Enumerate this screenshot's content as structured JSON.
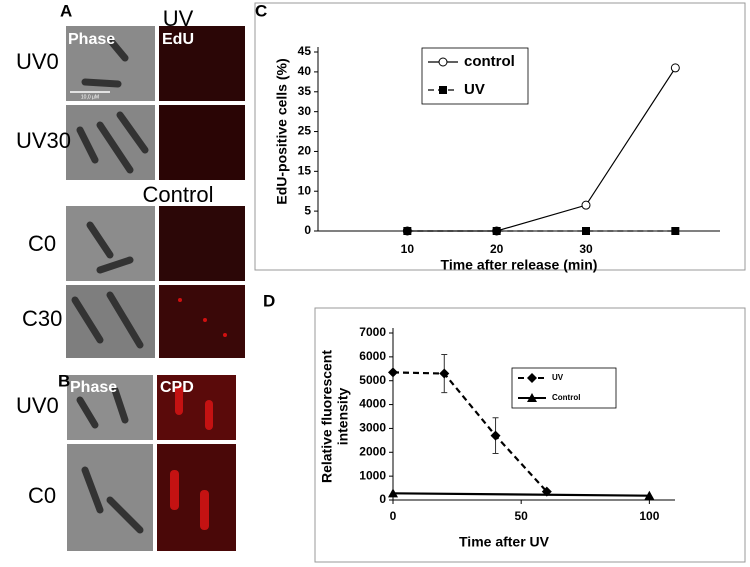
{
  "panel_a": {
    "label": "A",
    "uv_heading": "UV",
    "control_heading": "Control",
    "column_labels": [
      "Phase",
      "EdU"
    ],
    "scale_bar": "10,0 µM",
    "row_labels": [
      "UV0",
      "UV30",
      "C0",
      "C30"
    ]
  },
  "panel_b": {
    "label": "B",
    "column_labels": [
      "Phase",
      "CPD"
    ],
    "row_labels": [
      "UV0",
      "C0"
    ]
  },
  "chart_data": [
    {
      "type": "line",
      "panel_label": "C",
      "xlabel": "Time after release (min)",
      "ylabel": "EdU-positive cells (%)",
      "categories": [
        10,
        20,
        30,
        null
      ],
      "ylim": [
        0,
        45
      ],
      "yticks": [
        0,
        5,
        10,
        15,
        20,
        25,
        30,
        35,
        40,
        45
      ],
      "legend": "top-left",
      "series": [
        {
          "name": "control",
          "color": "#000000",
          "line_style": "solid",
          "marker": "circle-open",
          "values": [
            0,
            0,
            6.5,
            41
          ]
        },
        {
          "name": "UV",
          "color": "#000000",
          "line_style": "dashed",
          "marker": "square",
          "values": [
            0,
            0,
            0,
            0
          ]
        }
      ]
    },
    {
      "type": "line",
      "panel_label": "D",
      "xlabel": "Time after UV",
      "ylabel": [
        "Relative fluorescent",
        "intensity"
      ],
      "xlim": [
        0,
        110
      ],
      "xticks": [
        0,
        50,
        100
      ],
      "ylim": [
        0,
        7000
      ],
      "yticks": [
        0,
        1000,
        2000,
        3000,
        4000,
        5000,
        6000,
        7000
      ],
      "legend": "top-right",
      "series": [
        {
          "name": "UV",
          "color": "#000000",
          "line_style": "dashed",
          "marker": "diamond",
          "x": [
            0,
            20,
            40,
            60
          ],
          "values": [
            5350,
            5300,
            2700,
            350
          ],
          "errors": [
            0,
            800,
            750,
            0
          ]
        },
        {
          "name": "Control",
          "color": "#000000",
          "line_style": "solid",
          "marker": "triangle",
          "x": [
            0,
            100
          ],
          "values": [
            280,
            180
          ]
        }
      ]
    }
  ]
}
